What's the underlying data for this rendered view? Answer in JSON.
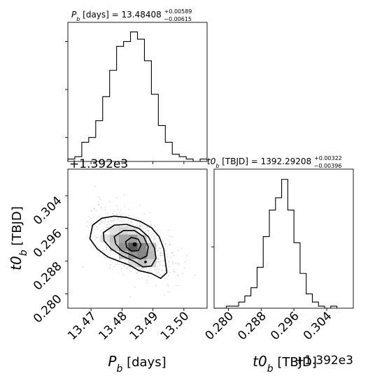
{
  "chart_data": {
    "type": "corner",
    "parameters": [
      {
        "name": "P_b",
        "label": "P_b [days]"
      },
      {
        "name": "t0_b",
        "label": "t0_b [TBJD]",
        "offset": 1392.0,
        "offset_label": "+1.392e3"
      }
    ],
    "panels": [
      {
        "id": "hist_P_b",
        "type": "histogram",
        "title": {
          "var": "P",
          "sub": "b",
          "unit": " [days] = 13.48408",
          "sup": "+0.00589",
          "inf": "−0.00615"
        },
        "xlim": [
          13.4625,
          13.5075
        ],
        "bins": [
          13.4625,
          13.46475,
          13.467,
          13.46925,
          13.4715,
          13.47375,
          13.476,
          13.47825,
          13.4805,
          13.48275,
          13.485,
          13.48725,
          13.4895,
          13.49175,
          13.494,
          13.49625,
          13.4985,
          13.50075,
          13.503,
          13.50525,
          13.5075
        ],
        "counts": [
          1,
          2,
          8,
          10,
          17,
          27,
          38,
          48,
          50,
          54,
          51,
          42,
          28,
          15,
          8,
          3,
          2,
          1,
          0,
          1
        ],
        "ylim": [
          0,
          58
        ],
        "yticks_unlabeled": [
          10,
          30,
          50
        ]
      },
      {
        "id": "scatter_P_t0",
        "type": "scatter_contour",
        "xlabel": {
          "var": "P",
          "sub": "b",
          "unit": " [days]"
        },
        "ylabel": {
          "var": "t0",
          "sub": "b",
          "unit": " [TBJD]"
        },
        "xlim": [
          13.4625,
          13.5075
        ],
        "ylim": [
          0.2765,
          0.3105
        ],
        "xticks": [
          13.47,
          13.48,
          13.49,
          13.5
        ],
        "xtick_labels": [
          "13.47",
          "13.48",
          "13.49",
          "13.50"
        ],
        "yticks": [
          0.28,
          0.288,
          0.296,
          0.304
        ],
        "ytick_labels": [
          "0.280",
          "0.288",
          "0.296",
          "0.304"
        ],
        "offset_text": "+1.392e3",
        "center": {
          "x": 13.4841,
          "y": 0.2921
        },
        "density_cells": [
          {
            "x": 13.4775,
            "y": 0.2955,
            "level": 0.15
          },
          {
            "x": 13.4805,
            "y": 0.2955,
            "level": 0.2
          },
          {
            "x": 13.4835,
            "y": 0.2955,
            "level": 0.15
          },
          {
            "x": 13.4745,
            "y": 0.2935,
            "level": 0.15
          },
          {
            "x": 13.4775,
            "y": 0.2935,
            "level": 0.3
          },
          {
            "x": 13.4805,
            "y": 0.2935,
            "level": 0.45
          },
          {
            "x": 13.4835,
            "y": 0.2935,
            "level": 0.5
          },
          {
            "x": 13.4865,
            "y": 0.2935,
            "level": 0.3
          },
          {
            "x": 13.4775,
            "y": 0.2915,
            "level": 0.25
          },
          {
            "x": 13.4805,
            "y": 0.2915,
            "level": 0.55
          },
          {
            "x": 13.4835,
            "y": 0.2915,
            "level": 0.85
          },
          {
            "x": 13.4865,
            "y": 0.2915,
            "level": 0.6
          },
          {
            "x": 13.4895,
            "y": 0.2915,
            "level": 0.3
          },
          {
            "x": 13.4805,
            "y": 0.2895,
            "level": 0.3
          },
          {
            "x": 13.4835,
            "y": 0.2895,
            "level": 0.55
          },
          {
            "x": 13.4865,
            "y": 0.2895,
            "level": 0.6
          },
          {
            "x": 13.4895,
            "y": 0.2895,
            "level": 0.35
          },
          {
            "x": 13.4835,
            "y": 0.2875,
            "level": 0.2
          },
          {
            "x": 13.4865,
            "y": 0.2875,
            "level": 0.3
          },
          {
            "x": 13.4895,
            "y": 0.2875,
            "level": 0.2
          }
        ],
        "contours": [
          {
            "level": "outer",
            "points": [
              [
                13.4705,
                0.2968
              ],
              [
                13.4735,
                0.2985
              ],
              [
                13.4775,
                0.299
              ],
              [
                13.4815,
                0.2987
              ],
              [
                13.486,
                0.2977
              ],
              [
                13.4895,
                0.2962
              ],
              [
                13.492,
                0.294
              ],
              [
                13.4935,
                0.291
              ],
              [
                13.494,
                0.288
              ],
              [
                13.4945,
                0.2852
              ],
              [
                13.4925,
                0.2838
              ],
              [
                13.4895,
                0.285
              ],
              [
                13.4855,
                0.2857
              ],
              [
                13.4825,
                0.287
              ],
              [
                13.479,
                0.288
              ],
              [
                13.4755,
                0.289
              ],
              [
                13.472,
                0.291
              ],
              [
                13.4696,
                0.2935
              ]
            ]
          },
          {
            "level": "mid-1",
            "points": [
              [
                13.474,
                0.295
              ],
              [
                13.4775,
                0.2968
              ],
              [
                13.4815,
                0.297
              ],
              [
                13.4855,
                0.296
              ],
              [
                13.4885,
                0.294
              ],
              [
                13.4905,
                0.2912
              ],
              [
                13.491,
                0.2887
              ],
              [
                13.4895,
                0.2868
              ],
              [
                13.4868,
                0.2866
              ],
              [
                13.4838,
                0.288
              ],
              [
                13.48,
                0.2893
              ],
              [
                13.4765,
                0.291
              ],
              [
                13.4742,
                0.293
              ]
            ]
          },
          {
            "level": "mid-2",
            "points": [
              [
                13.4775,
                0.294
              ],
              [
                13.4805,
                0.2955
              ],
              [
                13.484,
                0.2955
              ],
              [
                13.487,
                0.294
              ],
              [
                13.4885,
                0.2915
              ],
              [
                13.488,
                0.2893
              ],
              [
                13.486,
                0.2885
              ],
              [
                13.483,
                0.2895
              ],
              [
                13.48,
                0.2905
              ],
              [
                13.478,
                0.2922
              ]
            ]
          },
          {
            "level": "inner",
            "points": [
              [
                13.4812,
                0.2928
              ],
              [
                13.483,
                0.2938
              ],
              [
                13.4852,
                0.2934
              ],
              [
                13.4862,
                0.292
              ],
              [
                13.4853,
                0.2906
              ],
              [
                13.4832,
                0.2904
              ],
              [
                13.4815,
                0.2914
              ]
            ]
          }
        ]
      },
      {
        "id": "hist_t0_b",
        "type": "histogram",
        "title": {
          "var": "t0",
          "sub": "b",
          "unit": " [TBJD] = 1392.29208",
          "sup": "+0.00322",
          "inf": "−0.00396"
        },
        "xlim": [
          0.2765,
          0.3105
        ],
        "bins": [
          0.2765,
          0.278,
          0.2795,
          0.281,
          0.2825,
          0.284,
          0.2855,
          0.287,
          0.2885,
          0.29,
          0.2915,
          0.293,
          0.2945,
          0.296,
          0.2975,
          0.299,
          0.3005,
          0.302,
          0.3035,
          0.305,
          0.3065
        ],
        "counts": [
          0,
          0,
          1,
          1,
          3,
          6,
          10,
          20,
          35,
          48,
          54,
          63,
          48,
          32,
          17,
          7,
          3,
          1,
          0,
          1
        ],
        "ylim": [
          0,
          68
        ],
        "yticks_unlabeled": [
          30
        ],
        "xticks": [
          0.28,
          0.288,
          0.296,
          0.304
        ],
        "xtick_labels": [
          "0.280",
          "0.288",
          "0.296",
          "0.304"
        ],
        "offset_text": "+1.392e3"
      }
    ]
  }
}
